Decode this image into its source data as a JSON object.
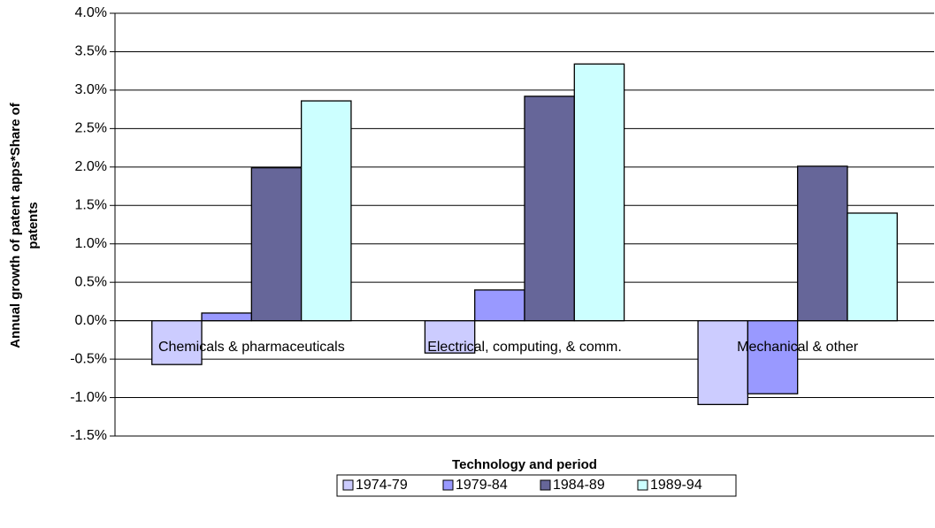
{
  "chart_data": {
    "type": "bar",
    "xlabel": "Technology and period",
    "ylabel": [
      "Annual growth of patent apps*Share of",
      "patents"
    ],
    "categories": [
      "Chemicals & pharmaceuticals",
      "Electrical, computing, & comm.",
      "Mechanical & other"
    ],
    "series": [
      {
        "name": "1974-79",
        "color": "#ccccff",
        "values": [
          -0.57,
          -0.42,
          -1.09
        ]
      },
      {
        "name": "1979-84",
        "color": "#9999ff",
        "values": [
          0.1,
          0.4,
          -0.95
        ]
      },
      {
        "name": "1984-89",
        "color": "#666699",
        "values": [
          1.99,
          2.92,
          2.01
        ]
      },
      {
        "name": "1989-94",
        "color": "#ccffff",
        "values": [
          2.86,
          3.34,
          1.4
        ]
      }
    ],
    "ylim": [
      -1.5,
      4.0
    ],
    "yticks": [
      {
        "value": -1.5,
        "label": "-1.5%"
      },
      {
        "value": -1.0,
        "label": "-1.0%"
      },
      {
        "value": -0.5,
        "label": "-0.5%"
      },
      {
        "value": 0,
        "label": "0.0%"
      },
      {
        "value": 0.5,
        "label": "0.5%"
      },
      {
        "value": 1.0,
        "label": "1.0%"
      },
      {
        "value": 1.5,
        "label": "1.5%"
      },
      {
        "value": 2.0,
        "label": "2.0%"
      },
      {
        "value": 2.5,
        "label": "2.5%"
      },
      {
        "value": 3.0,
        "label": "3.0%"
      },
      {
        "value": 3.5,
        "label": "3.5%"
      },
      {
        "value": 4.0,
        "label": "4.0%"
      }
    ],
    "grid": true
  }
}
